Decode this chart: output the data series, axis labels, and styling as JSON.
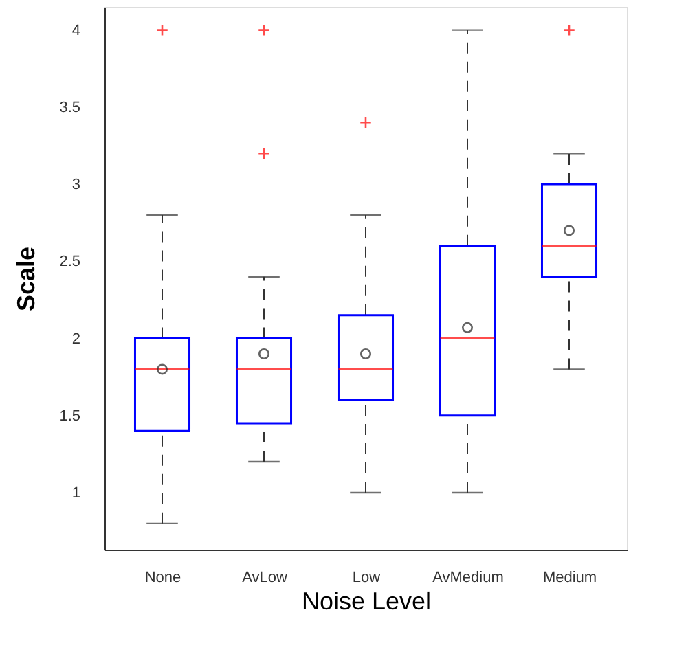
{
  "chart_data": {
    "type": "box",
    "xlabel": "Noise Level",
    "ylabel": "Scale",
    "categories": [
      "None",
      "AvLow",
      "Low",
      "AvMedium",
      "Medium"
    ],
    "series": [
      {
        "color": "#0000ff",
        "boxes": [
          {
            "low": 0.8,
            "q1": 1.4,
            "median": 1.8,
            "q3": 2.0,
            "high": 2.8,
            "mean": 1.8,
            "outliers": [
              4.0
            ]
          },
          {
            "low": 1.2,
            "q1": 1.45,
            "median": 1.8,
            "q3": 2.0,
            "high": 2.4,
            "mean": 1.9,
            "outliers": [
              4.0,
              3.2
            ]
          },
          {
            "low": 1.0,
            "q1": 1.6,
            "median": 1.8,
            "q3": 2.15,
            "high": 2.8,
            "mean": 1.9,
            "outliers": [
              3.4
            ]
          },
          {
            "low": 1.0,
            "q1": 1.5,
            "median": 2.0,
            "q3": 2.6,
            "high": 4.0,
            "mean": 2.07
          },
          {
            "low": 1.8,
            "q1": 2.4,
            "median": 2.6,
            "q3": 3.0,
            "high": 3.2,
            "mean": 2.7,
            "outliers": [
              4.0
            ]
          }
        ]
      }
    ],
    "ylim": [
      0.63,
      4.15
    ],
    "yticks": [
      1,
      1.5,
      2,
      2.5,
      3,
      3.5,
      4
    ],
    "grid": false,
    "marker": "cross"
  }
}
